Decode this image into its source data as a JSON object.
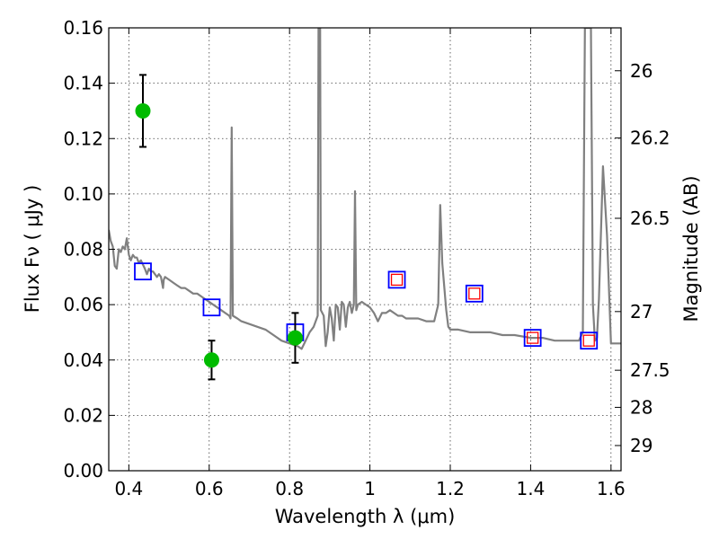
{
  "chart_data": {
    "type": "scatter",
    "xlabel": "Wavelength  λ (μm)",
    "ylabel": "Flux  Fν  ( μJy )",
    "ylabel_right": "Magnitude (AB)",
    "xlim": [
      0.35,
      1.625
    ],
    "ylim": [
      0.0,
      0.16
    ],
    "grid": true,
    "x_ticks": [
      0.4,
      0.6,
      0.8,
      1.0,
      1.2,
      1.4,
      1.6
    ],
    "x_tick_labels": [
      "0.4",
      "0.6",
      "0.8",
      "1",
      "1.2",
      "1.4",
      "1.6"
    ],
    "y_ticks": [
      0.0,
      0.02,
      0.04,
      0.06,
      0.08,
      0.1,
      0.12,
      0.14,
      0.16
    ],
    "y_tick_labels": [
      "0.00",
      "0.02",
      "0.04",
      "0.06",
      "0.08",
      "0.10",
      "0.12",
      "0.14",
      "0.16"
    ],
    "right_ticks": [
      {
        "label": "26",
        "flux": 0.1445
      },
      {
        "label": "26.2",
        "flux": 0.1202
      },
      {
        "label": "26.5",
        "flux": 0.0912
      },
      {
        "label": "27",
        "flux": 0.0575
      },
      {
        "label": "27.5",
        "flux": 0.0363
      },
      {
        "label": "28",
        "flux": 0.0229
      },
      {
        "label": "29",
        "flux": 0.0091
      }
    ],
    "colors": {
      "model": "#808080",
      "observed": "#00bb00",
      "errorbar": "#000000",
      "model_box": "#0000ff",
      "model_box_inner": "#ff0000"
    },
    "series": [
      {
        "kind": "line",
        "points": [
          [
            0.35,
            0.087
          ],
          [
            0.355,
            0.083
          ],
          [
            0.36,
            0.081
          ],
          [
            0.365,
            0.074
          ],
          [
            0.37,
            0.073
          ],
          [
            0.375,
            0.08
          ],
          [
            0.38,
            0.079
          ],
          [
            0.385,
            0.081
          ],
          [
            0.39,
            0.08
          ],
          [
            0.395,
            0.084
          ],
          [
            0.4,
            0.078
          ],
          [
            0.405,
            0.076
          ],
          [
            0.41,
            0.078
          ],
          [
            0.415,
            0.077
          ],
          [
            0.42,
            0.077
          ],
          [
            0.425,
            0.075
          ],
          [
            0.43,
            0.076
          ],
          [
            0.44,
            0.073
          ],
          [
            0.445,
            0.071
          ],
          [
            0.45,
            0.073
          ],
          [
            0.455,
            0.072
          ],
          [
            0.46,
            0.072
          ],
          [
            0.465,
            0.071
          ],
          [
            0.47,
            0.07
          ],
          [
            0.475,
            0.071
          ],
          [
            0.48,
            0.07
          ],
          [
            0.485,
            0.066
          ],
          [
            0.487,
            0.069
          ],
          [
            0.49,
            0.07
          ],
          [
            0.5,
            0.069
          ],
          [
            0.51,
            0.068
          ],
          [
            0.52,
            0.067
          ],
          [
            0.53,
            0.066
          ],
          [
            0.54,
            0.066
          ],
          [
            0.55,
            0.065
          ],
          [
            0.56,
            0.064
          ],
          [
            0.57,
            0.064
          ],
          [
            0.58,
            0.063
          ],
          [
            0.59,
            0.062
          ],
          [
            0.6,
            0.061
          ],
          [
            0.61,
            0.06
          ],
          [
            0.62,
            0.059
          ],
          [
            0.63,
            0.058
          ],
          [
            0.64,
            0.057
          ],
          [
            0.65,
            0.056
          ],
          [
            0.653,
            0.055
          ],
          [
            0.656,
            0.124
          ],
          [
            0.659,
            0.056
          ],
          [
            0.67,
            0.055
          ],
          [
            0.68,
            0.054
          ],
          [
            0.7,
            0.053
          ],
          [
            0.72,
            0.052
          ],
          [
            0.74,
            0.051
          ],
          [
            0.76,
            0.049
          ],
          [
            0.78,
            0.047
          ],
          [
            0.8,
            0.046
          ],
          [
            0.82,
            0.045
          ],
          [
            0.83,
            0.044
          ],
          [
            0.84,
            0.047
          ],
          [
            0.85,
            0.05
          ],
          [
            0.86,
            0.052
          ],
          [
            0.87,
            0.056
          ],
          [
            0.872,
            0.16
          ],
          [
            0.876,
            0.16
          ],
          [
            0.878,
            0.058
          ],
          [
            0.885,
            0.056
          ],
          [
            0.89,
            0.045
          ],
          [
            0.895,
            0.05
          ],
          [
            0.9,
            0.059
          ],
          [
            0.905,
            0.055
          ],
          [
            0.91,
            0.047
          ],
          [
            0.915,
            0.06
          ],
          [
            0.92,
            0.059
          ],
          [
            0.925,
            0.051
          ],
          [
            0.93,
            0.061
          ],
          [
            0.935,
            0.06
          ],
          [
            0.94,
            0.052
          ],
          [
            0.945,
            0.059
          ],
          [
            0.95,
            0.061
          ],
          [
            0.955,
            0.057
          ],
          [
            0.96,
            0.06
          ],
          [
            0.963,
            0.101
          ],
          [
            0.966,
            0.058
          ],
          [
            0.97,
            0.06
          ],
          [
            0.98,
            0.061
          ],
          [
            0.99,
            0.06
          ],
          [
            1.0,
            0.059
          ],
          [
            1.01,
            0.057
          ],
          [
            1.02,
            0.054
          ],
          [
            1.03,
            0.057
          ],
          [
            1.04,
            0.057
          ],
          [
            1.05,
            0.058
          ],
          [
            1.06,
            0.057
          ],
          [
            1.07,
            0.056
          ],
          [
            1.08,
            0.056
          ],
          [
            1.09,
            0.055
          ],
          [
            1.1,
            0.055
          ],
          [
            1.12,
            0.055
          ],
          [
            1.14,
            0.054
          ],
          [
            1.16,
            0.054
          ],
          [
            1.17,
            0.06
          ],
          [
            1.175,
            0.096
          ],
          [
            1.18,
            0.075
          ],
          [
            1.19,
            0.058
          ],
          [
            1.195,
            0.052
          ],
          [
            1.2,
            0.051
          ],
          [
            1.22,
            0.051
          ],
          [
            1.25,
            0.05
          ],
          [
            1.28,
            0.05
          ],
          [
            1.3,
            0.05
          ],
          [
            1.33,
            0.049
          ],
          [
            1.36,
            0.049
          ],
          [
            1.4,
            0.048
          ],
          [
            1.43,
            0.048
          ],
          [
            1.46,
            0.047
          ],
          [
            1.5,
            0.047
          ],
          [
            1.52,
            0.047
          ],
          [
            1.53,
            0.05
          ],
          [
            1.535,
            0.16
          ],
          [
            1.55,
            0.16
          ],
          [
            1.555,
            0.06
          ],
          [
            1.56,
            0.047
          ],
          [
            1.565,
            0.048
          ],
          [
            1.57,
            0.062
          ],
          [
            1.58,
            0.11
          ],
          [
            1.59,
            0.085
          ],
          [
            1.6,
            0.046
          ],
          [
            1.625,
            0.046
          ]
        ]
      },
      {
        "kind": "errorbar",
        "points": [
          {
            "x": 0.435,
            "y": 0.13,
            "lo": 0.117,
            "hi": 0.143
          },
          {
            "x": 0.606,
            "y": 0.04,
            "lo": 0.033,
            "hi": 0.047
          },
          {
            "x": 0.814,
            "y": 0.048,
            "lo": 0.039,
            "hi": 0.057
          }
        ]
      },
      {
        "kind": "open-square",
        "points": [
          {
            "x": 0.435,
            "y": 0.072,
            "inner": false
          },
          {
            "x": 0.606,
            "y": 0.059,
            "inner": false
          },
          {
            "x": 0.814,
            "y": 0.05,
            "inner": false
          },
          {
            "x": 1.067,
            "y": 0.069,
            "inner": true
          },
          {
            "x": 1.26,
            "y": 0.064,
            "inner": true
          },
          {
            "x": 1.405,
            "y": 0.048,
            "inner": true
          },
          {
            "x": 1.545,
            "y": 0.047,
            "inner": true
          }
        ]
      }
    ]
  }
}
